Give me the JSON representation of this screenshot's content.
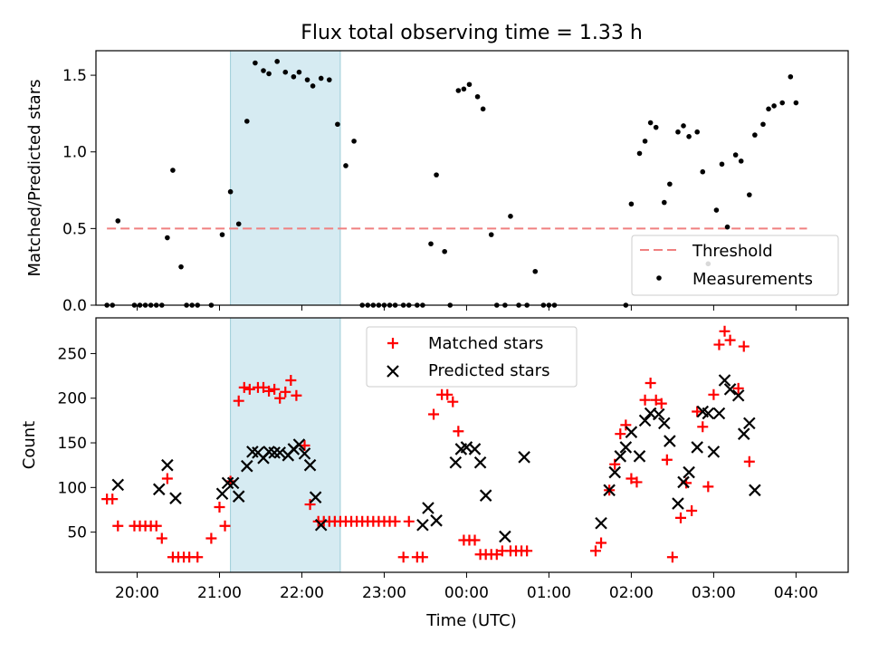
{
  "title": "Flux total observing time = 1.33 h",
  "colors": {
    "threshold": "#f08080",
    "measurement": "#000000",
    "matched": "#ff0000",
    "predicted": "#000000",
    "highlight": "#add8e6"
  },
  "chart_data": [
    {
      "type": "scatter",
      "ylabel": "Matched/Predicted stars",
      "ylim": [
        0,
        1.66
      ],
      "yticks": [
        0.0,
        0.5,
        1.0,
        1.5
      ],
      "ytick_labels": [
        "0.0",
        "0.5",
        "1.0",
        "1.5"
      ],
      "xlim": [
        "19:30",
        "04:38"
      ],
      "grid": false,
      "legend_position": "lower right",
      "highlight_span": [
        "21:08",
        "22:28"
      ],
      "threshold": {
        "label": "Threshold",
        "y": 0.5,
        "x_range": [
          "19:38",
          "04:08"
        ]
      },
      "series": [
        {
          "name": "Measurements",
          "marker": "dot",
          "points": [
            [
              "19:38",
              0.0
            ],
            [
              "19:42",
              0.0
            ],
            [
              "19:46",
              0.55
            ],
            [
              "19:58",
              0.0
            ],
            [
              "20:02",
              0.0
            ],
            [
              "20:06",
              0.0
            ],
            [
              "20:10",
              0.0
            ],
            [
              "20:14",
              0.0
            ],
            [
              "20:18",
              0.0
            ],
            [
              "20:22",
              0.44
            ],
            [
              "20:26",
              0.88
            ],
            [
              "20:32",
              0.25
            ],
            [
              "20:36",
              0.0
            ],
            [
              "20:40",
              0.0
            ],
            [
              "20:44",
              0.0
            ],
            [
              "20:54",
              0.0
            ],
            [
              "21:02",
              0.46
            ],
            [
              "21:08",
              0.74
            ],
            [
              "21:14",
              0.53
            ],
            [
              "21:20",
              1.2
            ],
            [
              "21:26",
              1.58
            ],
            [
              "21:32",
              1.53
            ],
            [
              "21:36",
              1.51
            ],
            [
              "21:42",
              1.59
            ],
            [
              "21:48",
              1.52
            ],
            [
              "21:54",
              1.49
            ],
            [
              "21:58",
              1.52
            ],
            [
              "22:04",
              1.47
            ],
            [
              "22:08",
              1.43
            ],
            [
              "22:14",
              1.48
            ],
            [
              "22:20",
              1.47
            ],
            [
              "22:26",
              1.18
            ],
            [
              "22:32",
              0.91
            ],
            [
              "22:38",
              1.07
            ],
            [
              "22:44",
              0.0
            ],
            [
              "22:48",
              0.0
            ],
            [
              "22:52",
              0.0
            ],
            [
              "22:56",
              0.0
            ],
            [
              "23:00",
              0.0
            ],
            [
              "23:04",
              0.0
            ],
            [
              "23:08",
              0.0
            ],
            [
              "23:14",
              0.0
            ],
            [
              "23:18",
              0.0
            ],
            [
              "23:24",
              0.0
            ],
            [
              "23:28",
              0.0
            ],
            [
              "23:34",
              0.4
            ],
            [
              "23:38",
              0.85
            ],
            [
              "23:44",
              0.35
            ],
            [
              "23:48",
              0.0
            ],
            [
              "23:54",
              1.4
            ],
            [
              "23:58",
              1.41
            ],
            [
              "00:02",
              1.44
            ],
            [
              "00:08",
              1.36
            ],
            [
              "00:12",
              1.28
            ],
            [
              "00:18",
              0.46
            ],
            [
              "00:22",
              0.0
            ],
            [
              "00:28",
              0.0
            ],
            [
              "00:32",
              0.58
            ],
            [
              "00:38",
              0.0
            ],
            [
              "00:44",
              0.0
            ],
            [
              "00:50",
              0.22
            ],
            [
              "00:56",
              0.0
            ],
            [
              "01:00",
              0.0
            ],
            [
              "01:04",
              0.0
            ],
            [
              "01:56",
              0.0
            ],
            [
              "02:00",
              0.66
            ],
            [
              "02:06",
              0.99
            ],
            [
              "02:10",
              1.07
            ],
            [
              "02:14",
              1.19
            ],
            [
              "02:18",
              1.16
            ],
            [
              "02:24",
              0.67
            ],
            [
              "02:28",
              0.79
            ],
            [
              "02:34",
              1.13
            ],
            [
              "02:38",
              1.17
            ],
            [
              "02:42",
              1.1
            ],
            [
              "02:48",
              1.13
            ],
            [
              "02:52",
              0.87
            ],
            [
              "02:56",
              0.27
            ],
            [
              "03:02",
              0.62
            ],
            [
              "03:06",
              0.92
            ],
            [
              "03:10",
              0.51
            ],
            [
              "03:16",
              0.98
            ],
            [
              "03:20",
              0.94
            ],
            [
              "03:26",
              0.72
            ],
            [
              "03:30",
              1.11
            ],
            [
              "03:36",
              1.18
            ],
            [
              "03:40",
              1.28
            ],
            [
              "03:44",
              1.3
            ],
            [
              "03:50",
              1.32
            ],
            [
              "03:56",
              1.49
            ],
            [
              "04:00",
              1.32
            ]
          ]
        }
      ]
    },
    {
      "type": "scatter",
      "xlabel": "Time (UTC)",
      "ylabel": "Count",
      "ylim": [
        5,
        290
      ],
      "yticks": [
        50,
        100,
        150,
        200,
        250
      ],
      "ytick_labels": [
        "50",
        "100",
        "150",
        "200",
        "250"
      ],
      "xlim": [
        "19:30",
        "04:38"
      ],
      "xticks": [
        "20:00",
        "21:00",
        "22:00",
        "23:00",
        "00:00",
        "01:00",
        "02:00",
        "03:00",
        "04:00"
      ],
      "grid": false,
      "legend_position": "upper center",
      "highlight_span": [
        "21:08",
        "22:28"
      ],
      "series": [
        {
          "name": "Matched stars",
          "marker": "plus",
          "points": [
            [
              "19:38",
              87
            ],
            [
              "19:42",
              87
            ],
            [
              "19:46",
              57
            ],
            [
              "19:58",
              57
            ],
            [
              "20:02",
              57
            ],
            [
              "20:06",
              57
            ],
            [
              "20:10",
              57
            ],
            [
              "20:14",
              57
            ],
            [
              "20:18",
              43
            ],
            [
              "20:22",
              110
            ],
            [
              "20:26",
              22
            ],
            [
              "20:30",
              22
            ],
            [
              "20:34",
              22
            ],
            [
              "20:38",
              22
            ],
            [
              "20:44",
              22
            ],
            [
              "20:54",
              43
            ],
            [
              "21:00",
              78
            ],
            [
              "21:04",
              57
            ],
            [
              "21:08",
              107
            ],
            [
              "21:14",
              197
            ],
            [
              "21:18",
              212
            ],
            [
              "21:22",
              210
            ],
            [
              "21:28",
              212
            ],
            [
              "21:32",
              212
            ],
            [
              "21:36",
              208
            ],
            [
              "21:40",
              210
            ],
            [
              "21:44",
              200
            ],
            [
              "21:48",
              207
            ],
            [
              "21:52",
              220
            ],
            [
              "21:56",
              203
            ],
            [
              "22:02",
              147
            ],
            [
              "22:06",
              81
            ],
            [
              "22:12",
              62
            ],
            [
              "22:16",
              62
            ],
            [
              "22:20",
              62
            ],
            [
              "22:24",
              62
            ],
            [
              "22:28",
              62
            ],
            [
              "22:32",
              62
            ],
            [
              "22:36",
              62
            ],
            [
              "22:40",
              62
            ],
            [
              "22:44",
              62
            ],
            [
              "22:48",
              62
            ],
            [
              "22:52",
              62
            ],
            [
              "22:56",
              62
            ],
            [
              "23:00",
              62
            ],
            [
              "23:04",
              62
            ],
            [
              "23:08",
              62
            ],
            [
              "23:14",
              22
            ],
            [
              "23:18",
              62
            ],
            [
              "23:24",
              22
            ],
            [
              "23:28",
              22
            ],
            [
              "23:36",
              182
            ],
            [
              "23:42",
              204
            ],
            [
              "23:46",
              204
            ],
            [
              "23:50",
              196
            ],
            [
              "23:54",
              163
            ],
            [
              "23:58",
              41
            ],
            [
              "00:02",
              41
            ],
            [
              "00:06",
              41
            ],
            [
              "00:10",
              25
            ],
            [
              "00:14",
              25
            ],
            [
              "00:18",
              25
            ],
            [
              "00:22",
              25
            ],
            [
              "00:26",
              29
            ],
            [
              "00:32",
              29
            ],
            [
              "00:36",
              29
            ],
            [
              "00:40",
              29
            ],
            [
              "00:44",
              29
            ],
            [
              "01:34",
              29
            ],
            [
              "01:38",
              38
            ],
            [
              "01:44",
              97
            ],
            [
              "01:48",
              126
            ],
            [
              "01:52",
              160
            ],
            [
              "01:56",
              170
            ],
            [
              "02:00",
              110
            ],
            [
              "02:04",
              106
            ],
            [
              "02:10",
              198
            ],
            [
              "02:14",
              217
            ],
            [
              "02:18",
              198
            ],
            [
              "02:22",
              194
            ],
            [
              "02:26",
              131
            ],
            [
              "02:30",
              22
            ],
            [
              "02:36",
              66
            ],
            [
              "02:40",
              105
            ],
            [
              "02:44",
              74
            ],
            [
              "02:48",
              185
            ],
            [
              "02:52",
              168
            ],
            [
              "02:56",
              101
            ],
            [
              "03:00",
              204
            ],
            [
              "03:04",
              260
            ],
            [
              "03:08",
              275
            ],
            [
              "03:12",
              265
            ],
            [
              "03:18",
              211
            ],
            [
              "03:22",
              258
            ],
            [
              "03:26",
              129
            ]
          ]
        },
        {
          "name": "Predicted stars",
          "marker": "x",
          "points": [
            [
              "19:46",
              103
            ],
            [
              "20:16",
              98
            ],
            [
              "20:22",
              125
            ],
            [
              "20:28",
              88
            ],
            [
              "21:02",
              93
            ],
            [
              "21:06",
              105
            ],
            [
              "21:10",
              105
            ],
            [
              "21:14",
              90
            ],
            [
              "21:20",
              124
            ],
            [
              "21:24",
              140
            ],
            [
              "21:28",
              139
            ],
            [
              "21:32",
              133
            ],
            [
              "21:36",
              140
            ],
            [
              "21:40",
              139
            ],
            [
              "21:44",
              139
            ],
            [
              "21:50",
              136
            ],
            [
              "21:54",
              143
            ],
            [
              "21:58",
              148
            ],
            [
              "22:02",
              138
            ],
            [
              "22:06",
              125
            ],
            [
              "22:10",
              89
            ],
            [
              "22:14",
              58
            ],
            [
              "23:28",
              58
            ],
            [
              "23:32",
              77
            ],
            [
              "23:38",
              63
            ],
            [
              "23:52",
              128
            ],
            [
              "23:56",
              143
            ],
            [
              "00:00",
              145
            ],
            [
              "00:06",
              143
            ],
            [
              "00:10",
              128
            ],
            [
              "00:14",
              91
            ],
            [
              "00:28",
              45
            ],
            [
              "00:42",
              134
            ],
            [
              "01:38",
              60
            ],
            [
              "01:44",
              97
            ],
            [
              "01:48",
              117
            ],
            [
              "01:52",
              135
            ],
            [
              "01:56",
              145
            ],
            [
              "02:00",
              162
            ],
            [
              "02:06",
              135
            ],
            [
              "02:10",
              175
            ],
            [
              "02:14",
              183
            ],
            [
              "02:20",
              182
            ],
            [
              "02:24",
              172
            ],
            [
              "02:28",
              152
            ],
            [
              "02:34",
              82
            ],
            [
              "02:38",
              106
            ],
            [
              "02:42",
              117
            ],
            [
              "02:48",
              145
            ],
            [
              "02:52",
              185
            ],
            [
              "02:56",
              183
            ],
            [
              "03:00",
              140
            ],
            [
              "03:04",
              183
            ],
            [
              "03:08",
              220
            ],
            [
              "03:12",
              210
            ],
            [
              "03:18",
              203
            ],
            [
              "03:22",
              160
            ],
            [
              "03:26",
              172
            ],
            [
              "03:30",
              97
            ]
          ]
        }
      ]
    }
  ]
}
